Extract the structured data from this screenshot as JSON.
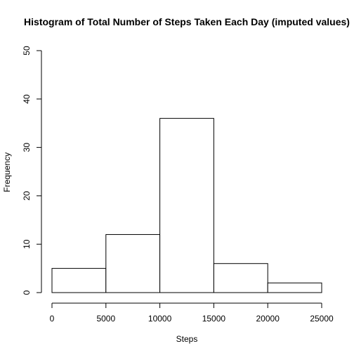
{
  "chart_data": {
    "type": "bar",
    "title": "Histogram of Total Number of Steps Taken Each Day (imputed values)",
    "xlabel": "Steps",
    "ylabel": "Frequency",
    "bins": [
      {
        "from": 0,
        "to": 5000,
        "value": 5
      },
      {
        "from": 5000,
        "to": 10000,
        "value": 12
      },
      {
        "from": 10000,
        "to": 15000,
        "value": 36
      },
      {
        "from": 15000,
        "to": 20000,
        "value": 6
      },
      {
        "from": 20000,
        "to": 25000,
        "value": 2
      }
    ],
    "xlim": [
      0,
      25000
    ],
    "ylim": [
      0,
      50
    ],
    "x_ticks": [
      "0",
      "5000",
      "10000",
      "15000",
      "20000",
      "25000"
    ],
    "y_ticks": [
      "0",
      "10",
      "20",
      "30",
      "40",
      "50"
    ],
    "grid": false,
    "bar_fill": "#ffffff",
    "bar_stroke": "#000000"
  }
}
